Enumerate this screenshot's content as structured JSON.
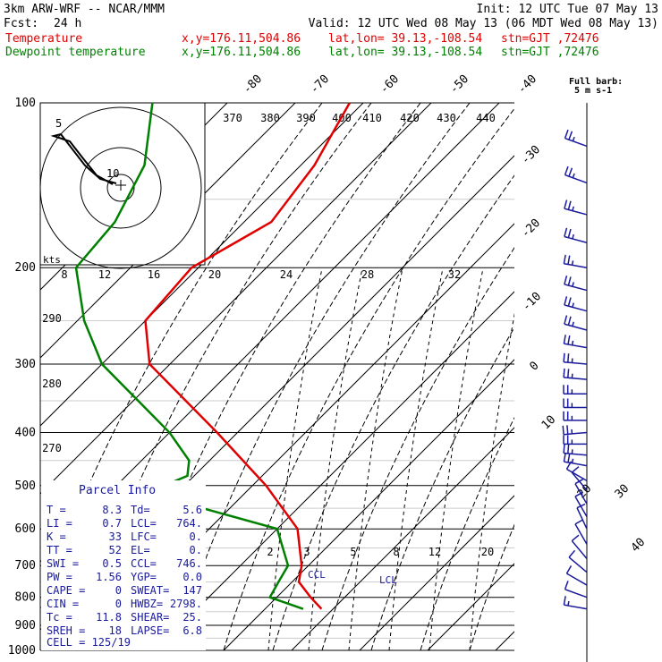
{
  "header": {
    "model": "3km ARW-WRF -- NCAR/MMM",
    "init": "Init: 12 UTC Tue 07 May 13",
    "fcst_label": "Fcst:",
    "fcst_value": "24 h",
    "valid": "Valid: 12 UTC Wed 08 May 13 (06 MDT Wed 08 May 13)"
  },
  "legend": {
    "temperature": {
      "label": "Temperature",
      "loc": "x,y=176.11,504.86",
      "latlon": "lat,lon= 39.13,-108.54",
      "stn": "stn=GJT ,72476",
      "color": "#e00000"
    },
    "dewpoint": {
      "label": "Dewpoint temperature",
      "loc": "x,y=176.11,504.86",
      "latlon": "lat,lon= 39.13,-108.54",
      "stn": "stn=GJT ,72476",
      "color": "#008000"
    }
  },
  "barb_key": {
    "line1": "Full barb:",
    "line2": "5 m s-1"
  },
  "hodograph": {
    "unit": "kts",
    "ring_labels": [
      "5",
      "10"
    ],
    "speed_labels": [
      "8",
      "12",
      "16",
      "20",
      "24",
      "28",
      "32"
    ]
  },
  "theta_labels": [
    "370",
    "380",
    "390",
    "400",
    "410",
    "420",
    "430",
    "440"
  ],
  "theta_left_labels": [
    "290",
    "280",
    "270"
  ],
  "mixing_labels": [
    "2",
    "3",
    "5",
    "8",
    "12",
    "20"
  ],
  "markers": {
    "ccl": "CCL",
    "lcl": "LCL"
  },
  "parcel_info": {
    "title": "Parcel Info",
    "rows": [
      {
        "k1": "T",
        "v1": "8.3",
        "k2": "Td",
        "v2": "5.6"
      },
      {
        "k1": "LI",
        "v1": "0.7",
        "k2": "LCL",
        "v2": "764."
      },
      {
        "k1": "K",
        "v1": "33",
        "k2": "LFC",
        "v2": "0."
      },
      {
        "k1": "TT",
        "v1": "52",
        "k2": "EL",
        "v2": "0."
      },
      {
        "k1": "SWI",
        "v1": "0.5",
        "k2": "CCL",
        "v2": "746."
      },
      {
        "k1": "PW",
        "v1": "1.56",
        "k2": "YGP",
        "v2": "0.0"
      },
      {
        "k1": "CAPE",
        "v1": "0",
        "k2": "SWEAT",
        "v2": "147"
      },
      {
        "k1": "CIN",
        "v1": "0",
        "k2": "HWBZ",
        "v2": "2798."
      },
      {
        "k1": "Tc",
        "v1": "11.8",
        "k2": "SHEAR",
        "v2": "25."
      },
      {
        "k1": "SREH",
        "v1": "18",
        "k2": "LAPSE",
        "v2": "6.8"
      }
    ],
    "cell": "CELL = 125/19"
  },
  "chart_data": {
    "type": "line",
    "title": "",
    "ylabel": "",
    "pressure_levels": [
      100,
      200,
      300,
      400,
      500,
      600,
      700,
      800,
      900,
      1000
    ],
    "isotherm_labels": [
      -80,
      -70,
      -60,
      -50,
      -40,
      -30,
      -20,
      -10,
      0,
      10,
      20,
      30,
      40
    ],
    "series": [
      {
        "name": "Temperature",
        "color": "#e00000",
        "points": [
          [
            100,
            -62
          ],
          [
            130,
            -58
          ],
          [
            165,
            -56
          ],
          [
            200,
            -61
          ],
          [
            250,
            -60
          ],
          [
            300,
            -53
          ],
          [
            400,
            -33
          ],
          [
            500,
            -18
          ],
          [
            600,
            -7
          ],
          [
            700,
            -1
          ],
          [
            750,
            1
          ],
          [
            800,
            5
          ],
          [
            840,
            8.3
          ]
        ]
      },
      {
        "name": "Dewpoint temperature",
        "color": "#008000",
        "points": [
          [
            100,
            -91
          ],
          [
            130,
            -83
          ],
          [
            165,
            -79
          ],
          [
            200,
            -78
          ],
          [
            250,
            -69
          ],
          [
            300,
            -60
          ],
          [
            400,
            -40
          ],
          [
            450,
            -33
          ],
          [
            480,
            -31
          ],
          [
            500,
            -33
          ],
          [
            550,
            -24
          ],
          [
            600,
            -10
          ],
          [
            700,
            -3
          ],
          [
            750,
            -2
          ],
          [
            800,
            -1
          ],
          [
            840,
            5.6
          ]
        ]
      }
    ],
    "wind_barbs": [
      {
        "p": 120,
        "spd": 15,
        "dir": 290
      },
      {
        "p": 140,
        "spd": 15,
        "dir": 290
      },
      {
        "p": 160,
        "spd": 15,
        "dir": 285
      },
      {
        "p": 180,
        "spd": 15,
        "dir": 285
      },
      {
        "p": 200,
        "spd": 15,
        "dir": 280
      },
      {
        "p": 220,
        "spd": 15,
        "dir": 285
      },
      {
        "p": 240,
        "spd": 15,
        "dir": 285
      },
      {
        "p": 260,
        "spd": 15,
        "dir": 285
      },
      {
        "p": 280,
        "spd": 15,
        "dir": 280
      },
      {
        "p": 300,
        "spd": 15,
        "dir": 275
      },
      {
        "p": 320,
        "spd": 15,
        "dir": 275
      },
      {
        "p": 340,
        "spd": 15,
        "dir": 270
      },
      {
        "p": 360,
        "spd": 15,
        "dir": 270
      },
      {
        "p": 380,
        "spd": 15,
        "dir": 270
      },
      {
        "p": 400,
        "spd": 15,
        "dir": 265
      },
      {
        "p": 420,
        "spd": 15,
        "dir": 270
      },
      {
        "p": 440,
        "spd": 15,
        "dir": 275
      },
      {
        "p": 460,
        "spd": 15,
        "dir": 280
      },
      {
        "p": 490,
        "spd": 10,
        "dir": 300
      },
      {
        "p": 510,
        "spd": 10,
        "dir": 320
      },
      {
        "p": 540,
        "spd": 10,
        "dir": 330
      },
      {
        "p": 570,
        "spd": 10,
        "dir": 330
      },
      {
        "p": 600,
        "spd": 10,
        "dir": 335
      },
      {
        "p": 640,
        "spd": 10,
        "dir": 330
      },
      {
        "p": 680,
        "spd": 10,
        "dir": 320
      },
      {
        "p": 720,
        "spd": 10,
        "dir": 310
      },
      {
        "p": 760,
        "spd": 10,
        "dir": 300
      },
      {
        "p": 800,
        "spd": 10,
        "dir": 290
      },
      {
        "p": 840,
        "spd": 5,
        "dir": 280
      }
    ]
  }
}
